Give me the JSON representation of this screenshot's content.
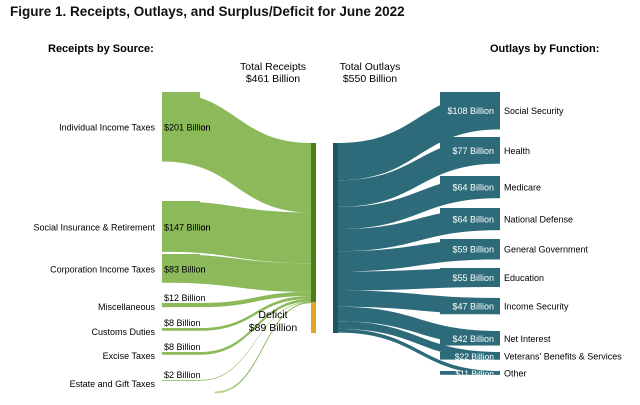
{
  "figure_title": "Figure 1. Receipts, Outlays, and Surplus/Deficit for June 2022",
  "chart_data": {
    "type": "sankey",
    "unit": "Billion",
    "left_heading": "Receipts by Source:",
    "right_heading": "Outlays by Function:",
    "total_receipts_label": [
      "Total Receipts",
      "$461 Billion"
    ],
    "total_outlays_label": [
      "Total Outlays",
      "$550 Billion"
    ],
    "total_receipts": 461,
    "total_outlays": 550,
    "deficit": {
      "label": [
        "Deficit",
        "$89 Billion"
      ],
      "value": 89
    },
    "receipts": [
      {
        "name": "Individual Income Taxes",
        "value": 201,
        "value_label": "$201 Billion"
      },
      {
        "name": "Social Insurance & Retirement",
        "value": 147,
        "value_label": "$147 Billion"
      },
      {
        "name": "Corporation Income Taxes",
        "value": 83,
        "value_label": "$83 Billion"
      },
      {
        "name": "Miscellaneous",
        "value": 12,
        "value_label": "$12 Billion"
      },
      {
        "name": "Customs Duties",
        "value": 8,
        "value_label": "$8 Billion"
      },
      {
        "name": "Excise Taxes",
        "value": 8,
        "value_label": "$8 Billion"
      },
      {
        "name": "Estate and Gift Taxes",
        "value": 2,
        "value_label": "$2 Billion"
      }
    ],
    "outlays": [
      {
        "name": "Social Security",
        "value": 108,
        "value_label": "$108 Billion"
      },
      {
        "name": "Health",
        "value": 77,
        "value_label": "$77 Billion"
      },
      {
        "name": "Medicare",
        "value": 64,
        "value_label": "$64 Billion"
      },
      {
        "name": "National Defense",
        "value": 64,
        "value_label": "$64 Billion"
      },
      {
        "name": "General Government",
        "value": 59,
        "value_label": "$59 Billion"
      },
      {
        "name": "Education",
        "value": 55,
        "value_label": "$55 Billion"
      },
      {
        "name": "Income Security",
        "value": 47,
        "value_label": "$47 Billion"
      },
      {
        "name": "Net Interest",
        "value": 42,
        "value_label": "$42 Billion"
      },
      {
        "name": "Veterans' Benefits & Services",
        "value": 22,
        "value_label": "$22 Billion"
      },
      {
        "name": "Other",
        "value": 11,
        "value_label": "$11 Billion"
      }
    ],
    "colors": {
      "receipts_flow": "#8cba5a",
      "receipts_bar": "#4e7d1e",
      "deficit_bar": "#e0a623",
      "deficit_flow": "#8cba5a",
      "outlays_flow": "#2d6b7a",
      "outlays_bar": "#1f5563"
    }
  }
}
